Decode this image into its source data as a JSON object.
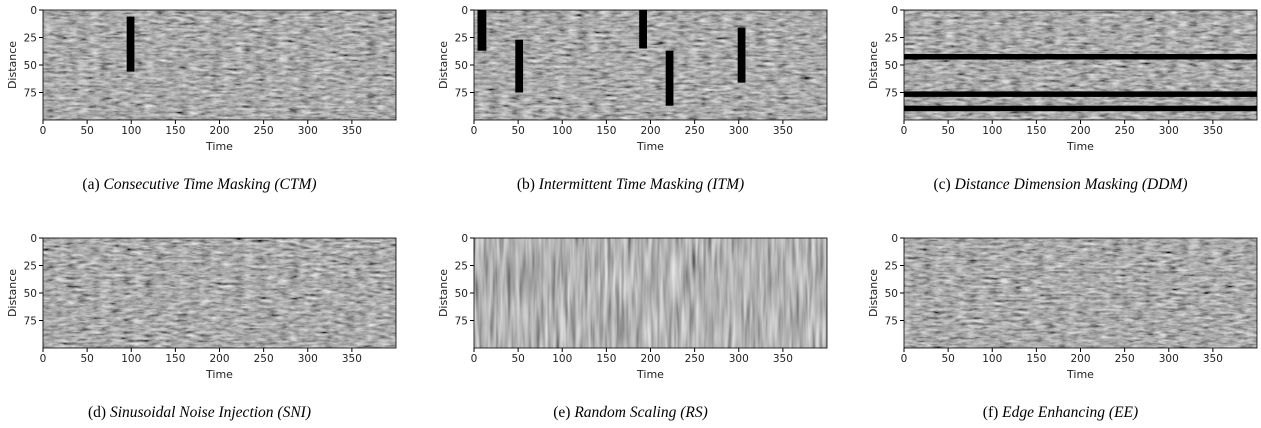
{
  "chart_data": [
    {
      "type": "heatmap",
      "caption_label": "(a)",
      "caption": "Consecutive Time Masking (CTM)",
      "x_label": "Time",
      "y_label": "Distance",
      "xlim": [
        0,
        400
      ],
      "ylim": [
        0,
        100
      ],
      "y_inverted": true,
      "xticks": [
        0,
        50,
        100,
        150,
        200,
        250,
        300,
        350
      ],
      "yticks": [
        0,
        25,
        50,
        75
      ]
    },
    {
      "type": "heatmap",
      "caption_label": "(b)",
      "caption": "Intermittent Time Masking (ITM)",
      "x_label": "Time",
      "y_label": "Distance",
      "xlim": [
        0,
        400
      ],
      "ylim": [
        0,
        100
      ],
      "y_inverted": true,
      "xticks": [
        0,
        50,
        100,
        150,
        200,
        250,
        300,
        350
      ],
      "yticks": [
        0,
        25,
        50,
        75
      ]
    },
    {
      "type": "heatmap",
      "caption_label": "(c)",
      "caption": "Distance Dimension Masking (DDM)",
      "x_label": "Time",
      "y_label": "Distance",
      "xlim": [
        0,
        400
      ],
      "ylim": [
        0,
        100
      ],
      "y_inverted": true,
      "xticks": [
        0,
        50,
        100,
        150,
        200,
        250,
        300,
        350
      ],
      "yticks": [
        0,
        25,
        50,
        75
      ]
    },
    {
      "type": "heatmap",
      "caption_label": "(d)",
      "caption": "Sinusoidal Noise Injection (SNI)",
      "x_label": "Time",
      "y_label": "Distance",
      "xlim": [
        0,
        400
      ],
      "ylim": [
        0,
        100
      ],
      "y_inverted": true,
      "xticks": [
        0,
        50,
        100,
        150,
        200,
        250,
        300,
        350
      ],
      "yticks": [
        0,
        25,
        50,
        75
      ]
    },
    {
      "type": "heatmap",
      "caption_label": "(e)",
      "caption": "Random Scaling (RS)",
      "x_label": "Time",
      "y_label": "Distance",
      "xlim": [
        0,
        400
      ],
      "ylim": [
        0,
        100
      ],
      "y_inverted": true,
      "xticks": [
        0,
        50,
        100,
        150,
        200,
        250,
        300,
        350
      ],
      "yticks": [
        0,
        25,
        50,
        75
      ]
    },
    {
      "type": "heatmap",
      "caption_label": "(f)",
      "caption": "Edge Enhancing (EE)",
      "x_label": "Time",
      "y_label": "Distance",
      "xlim": [
        0,
        400
      ],
      "ylim": [
        0,
        100
      ],
      "y_inverted": true,
      "xticks": [
        0,
        50,
        100,
        150,
        200,
        250,
        300,
        350
      ],
      "yticks": [
        0,
        25,
        50,
        75
      ]
    }
  ]
}
